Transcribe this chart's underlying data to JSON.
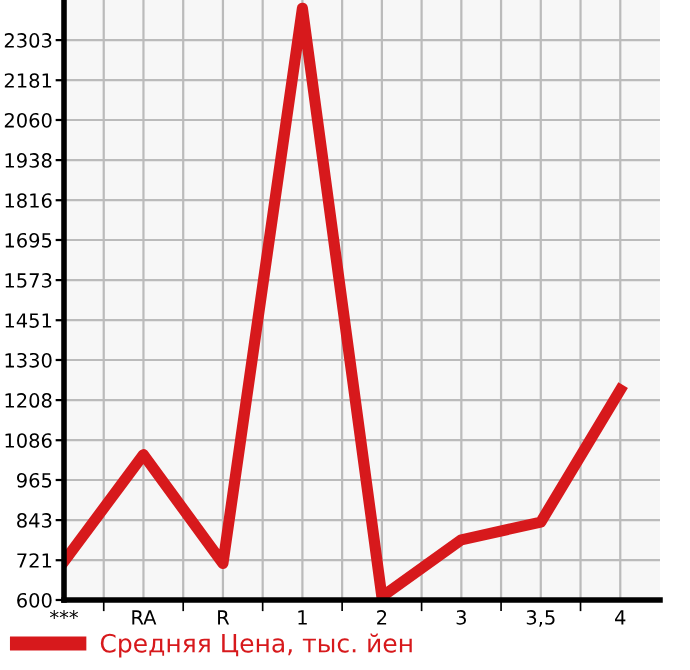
{
  "chart_data": {
    "type": "line",
    "categories": [
      "***",
      "RA",
      "R",
      "1",
      "2",
      "3",
      "3,5",
      "4"
    ],
    "series": [
      {
        "name": "Средняя Цена, тыс. йен",
        "color": "#d7191c",
        "values": [
          717,
          1042,
          711,
          2400,
          610,
          783,
          837,
          1239
        ]
      }
    ],
    "ylim": [
      600,
      2425
    ],
    "yticks": [
      600,
      721,
      843,
      965,
      1086,
      1208,
      1330,
      1451,
      1573,
      1695,
      1816,
      1938,
      2060,
      2181,
      2303
    ],
    "grid": true,
    "legend": "bottom",
    "marker": "none",
    "line_style": "solid"
  }
}
